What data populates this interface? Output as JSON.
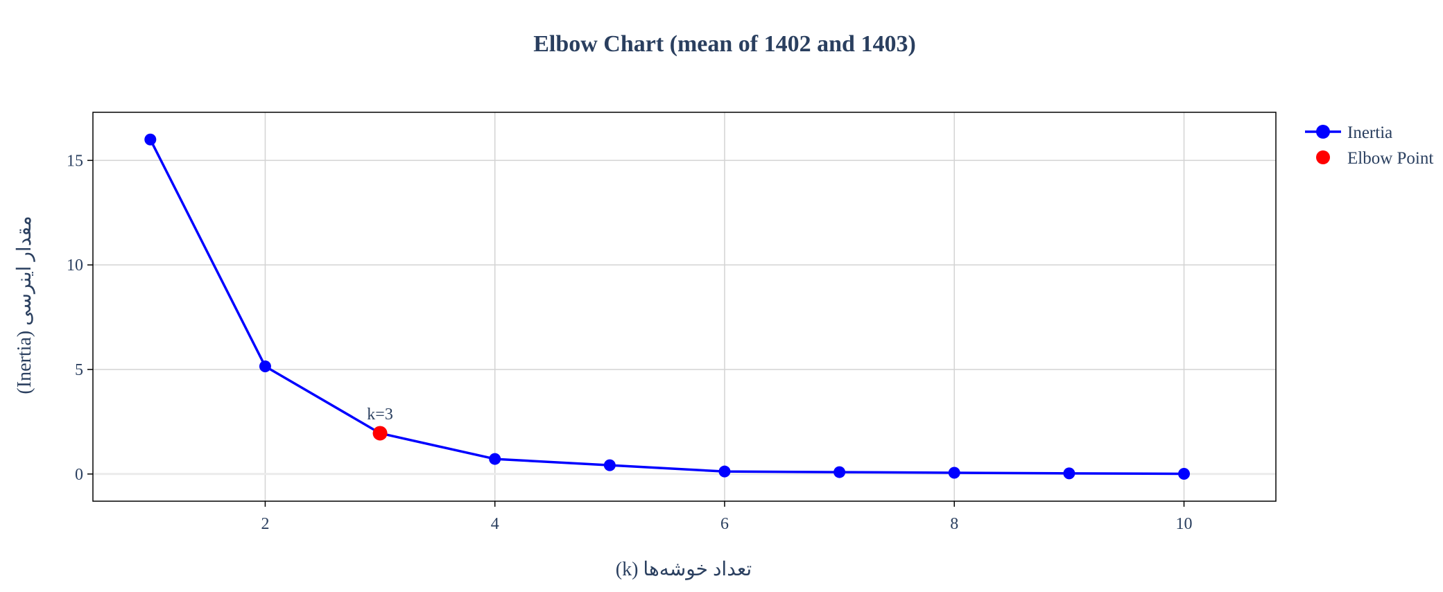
{
  "colors": {
    "inertia": "#0000ff",
    "elbow": "#ff0000",
    "grid": "#d3d3d3",
    "zero_line": "#ebebeb",
    "frame": "#000000",
    "text": "#2a3f5f"
  },
  "chart_data": {
    "type": "line",
    "title": "Elbow Chart (mean of 1402 and 1403)",
    "xlabel": "تعداد خوشه‌ها (k)",
    "ylabel": "مقدار اینرسی (Inertia)",
    "xlim": [
      0.5,
      10.8
    ],
    "ylim": [
      -1.3,
      17.3
    ],
    "xticks": [
      2,
      4,
      6,
      8,
      10
    ],
    "yticks": [
      0,
      5,
      10,
      15
    ],
    "grid": true,
    "legend_position": "top-right, outside plot",
    "series": [
      {
        "name": "Inertia",
        "mode": "lines+markers",
        "x": [
          1,
          2,
          3,
          4,
          5,
          6,
          7,
          8,
          9,
          10
        ],
        "y": [
          16.0,
          5.15,
          1.95,
          0.72,
          0.42,
          0.12,
          0.09,
          0.06,
          0.03,
          0.01
        ]
      },
      {
        "name": "Elbow Point",
        "mode": "markers",
        "x": [
          3
        ],
        "y": [
          1.95
        ]
      }
    ],
    "annotations": [
      {
        "text": "k=3",
        "x": 3,
        "y": 1.95
      }
    ]
  }
}
